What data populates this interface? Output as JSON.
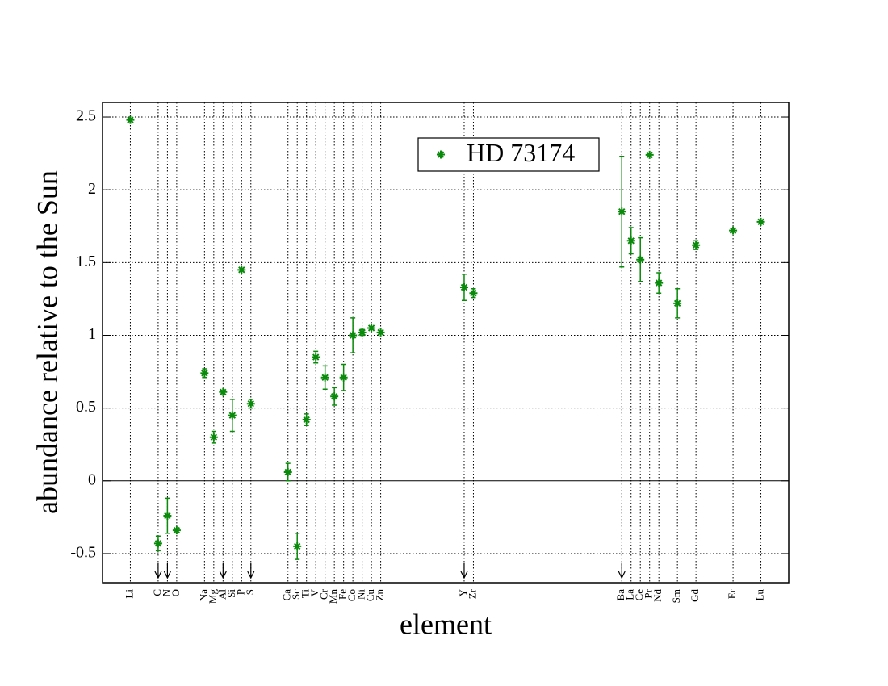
{
  "chart_data": {
    "type": "scatter",
    "xlabel": "element",
    "ylabel": "abundance relative to the Sun",
    "xlim": [
      0,
      74
    ],
    "ylim": [
      -0.7,
      2.6
    ],
    "yticks": [
      -0.5,
      0,
      0.5,
      1,
      1.5,
      2,
      2.5
    ],
    "xticks": [
      {
        "value": 3,
        "label": "Li"
      },
      {
        "value": 6,
        "label": "C"
      },
      {
        "value": 7,
        "label": "N"
      },
      {
        "value": 8,
        "label": "O"
      },
      {
        "value": 11,
        "label": "Na"
      },
      {
        "value": 12,
        "label": "Mg"
      },
      {
        "value": 13,
        "label": "Al"
      },
      {
        "value": 14,
        "label": "Si"
      },
      {
        "value": 15,
        "label": "P"
      },
      {
        "value": 16,
        "label": "S"
      },
      {
        "value": 20,
        "label": "Ca"
      },
      {
        "value": 21,
        "label": "Sc"
      },
      {
        "value": 22,
        "label": "Ti"
      },
      {
        "value": 23,
        "label": "V"
      },
      {
        "value": 24,
        "label": "Cr"
      },
      {
        "value": 25,
        "label": "Mn"
      },
      {
        "value": 26,
        "label": "Fe"
      },
      {
        "value": 27,
        "label": "Co"
      },
      {
        "value": 28,
        "label": "Ni"
      },
      {
        "value": 29,
        "label": "Cu"
      },
      {
        "value": 30,
        "label": "Zn"
      },
      {
        "value": 39,
        "label": "Y"
      },
      {
        "value": 40,
        "label": "Zr"
      },
      {
        "value": 56,
        "label": "Ba"
      },
      {
        "value": 57,
        "label": "La"
      },
      {
        "value": 58,
        "label": "Ce"
      },
      {
        "value": 59,
        "label": "Pr"
      },
      {
        "value": 60,
        "label": "Nd"
      },
      {
        "value": 62,
        "label": "Sm"
      },
      {
        "value": 64,
        "label": "Gd"
      },
      {
        "value": 68,
        "label": "Er"
      },
      {
        "value": 71,
        "label": "Lu"
      }
    ],
    "grid": true,
    "legend": "top",
    "series": [
      {
        "name": "HD 73174",
        "color": "#0a8a0a",
        "x": [
          3,
          6,
          7,
          8,
          11,
          12,
          13,
          14,
          15,
          16,
          20,
          21,
          22,
          23,
          24,
          25,
          26,
          27,
          28,
          29,
          30,
          39,
          40,
          56,
          57,
          58,
          59,
          60,
          62,
          64,
          68,
          71
        ],
        "values": [
          2.48,
          -0.43,
          -0.24,
          -0.34,
          0.74,
          0.3,
          0.61,
          0.45,
          1.45,
          0.53,
          0.06,
          -0.45,
          0.42,
          0.85,
          0.71,
          0.58,
          0.71,
          1.0,
          1.02,
          1.05,
          1.02,
          1.33,
          1.29,
          1.85,
          1.65,
          1.52,
          2.24,
          1.36,
          1.22,
          1.62,
          1.72,
          1.78
        ],
        "errors": [
          null,
          0.05,
          0.12,
          null,
          0.03,
          0.04,
          null,
          0.11,
          null,
          0.03,
          0.06,
          0.09,
          0.04,
          0.04,
          0.08,
          0.06,
          0.09,
          0.12,
          0.02,
          null,
          null,
          0.09,
          0.03,
          0.38,
          0.09,
          0.15,
          null,
          0.07,
          0.1,
          0.03,
          null,
          null
        ]
      }
    ],
    "arrows": [
      6,
      7,
      13,
      16,
      39,
      56
    ]
  }
}
